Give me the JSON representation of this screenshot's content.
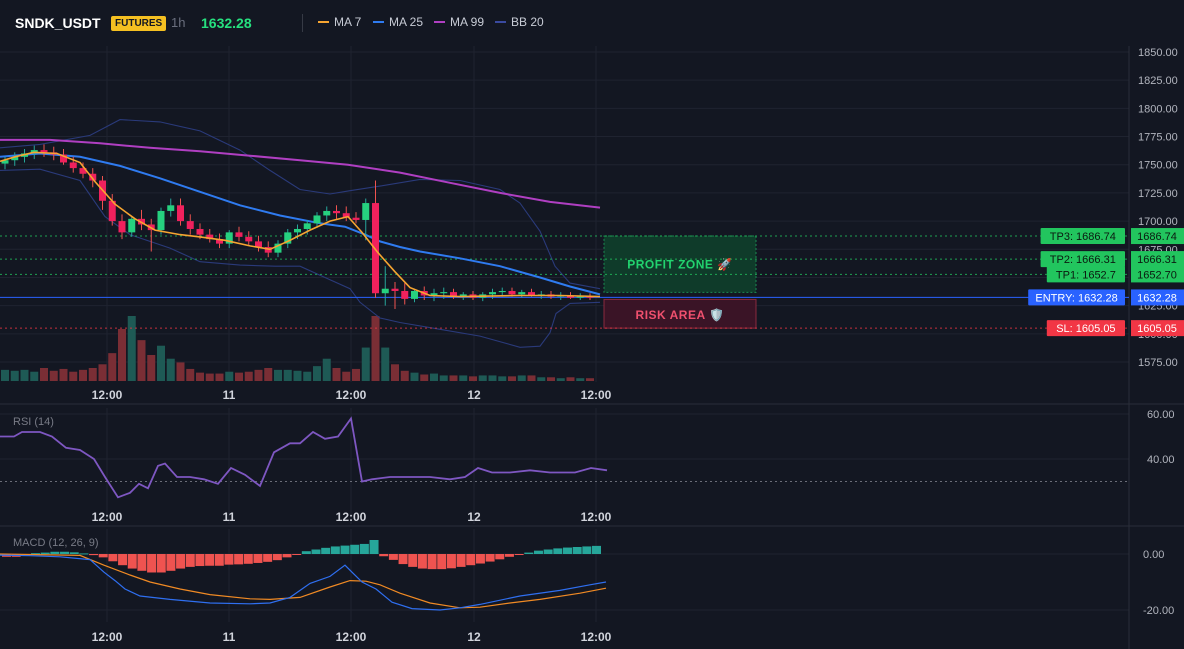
{
  "header": {
    "symbol": "SNDK_USDT",
    "badge": "FUTURES",
    "interval": "1h",
    "last_price": "1632.28"
  },
  "legend": [
    {
      "name": "MA 7",
      "color": "#f7a531"
    },
    {
      "name": "MA 25",
      "color": "#2f7bf0"
    },
    {
      "name": "MA 99",
      "color": "#b03fc2"
    },
    {
      "name": "BB 20",
      "color": "#2a3a7a"
    }
  ],
  "zones": {
    "profit_label": "PROFIT ZONE 🚀",
    "risk_label": "RISK AREA 🛡️"
  },
  "price_levels": [
    {
      "label": "TP3: 1686.74",
      "value": 1686.74,
      "axis_label": "1686.74",
      "color": "#22c55e",
      "kind": "tp"
    },
    {
      "label": "TP2: 1666.31",
      "value": 1666.31,
      "axis_label": "1666.31",
      "color": "#22c55e",
      "kind": "tp"
    },
    {
      "label": "TP1: 1652.7",
      "value": 1652.7,
      "axis_label": "1652.70",
      "color": "#22c55e",
      "kind": "tp"
    },
    {
      "label": "ENTRY: 1632.28",
      "value": 1632.28,
      "axis_label": "1632.28",
      "color": "#2962ff",
      "kind": "entry"
    },
    {
      "label": "SL: 1605.05",
      "value": 1605.05,
      "axis_label": "1605.05",
      "color": "#f23645",
      "kind": "sl"
    }
  ],
  "chart_data": [
    {
      "type": "candlestick",
      "title": "",
      "y_ticks": [
        "1850.00",
        "1825.00",
        "1800.00",
        "1775.00",
        "1750.00",
        "1725.00",
        "1700.00",
        "1675.00",
        "1650.00",
        "1625.00",
        "1600.00",
        "1575.00"
      ],
      "x_ticks": [
        "12:00",
        "11",
        "12:00",
        "12",
        "12:00"
      ],
      "ylim": [
        1565,
        1853
      ],
      "ohlc": [
        [
          1751,
          1757,
          1746,
          1754
        ],
        [
          1754,
          1761,
          1749,
          1757
        ],
        [
          1757,
          1764,
          1752,
          1760
        ],
        [
          1760,
          1767,
          1755,
          1763
        ],
        [
          1763,
          1768,
          1757,
          1761
        ],
        [
          1761,
          1766,
          1754,
          1759
        ],
        [
          1759,
          1764,
          1750,
          1752
        ],
        [
          1752,
          1757,
          1743,
          1747
        ],
        [
          1747,
          1752,
          1738,
          1742
        ],
        [
          1742,
          1747,
          1730,
          1736
        ],
        [
          1736,
          1740,
          1710,
          1718
        ],
        [
          1718,
          1724,
          1696,
          1700
        ],
        [
          1700,
          1706,
          1684,
          1690
        ],
        [
          1690,
          1704,
          1686,
          1702
        ],
        [
          1702,
          1710,
          1692,
          1697
        ],
        [
          1697,
          1702,
          1673,
          1692
        ],
        [
          1692,
          1712,
          1688,
          1709
        ],
        [
          1709,
          1720,
          1704,
          1714
        ],
        [
          1714,
          1720,
          1696,
          1700
        ],
        [
          1700,
          1706,
          1688,
          1693
        ],
        [
          1693,
          1698,
          1684,
          1688
        ],
        [
          1688,
          1693,
          1681,
          1684
        ],
        [
          1684,
          1689,
          1676,
          1680
        ],
        [
          1680,
          1692,
          1676,
          1690
        ],
        [
          1690,
          1695,
          1682,
          1686
        ],
        [
          1686,
          1691,
          1679,
          1682
        ],
        [
          1682,
          1687,
          1673,
          1677
        ],
        [
          1677,
          1682,
          1668,
          1672
        ],
        [
          1672,
          1683,
          1668,
          1680
        ],
        [
          1680,
          1693,
          1676,
          1690
        ],
        [
          1690,
          1697,
          1684,
          1693
        ],
        [
          1693,
          1701,
          1688,
          1698
        ],
        [
          1698,
          1708,
          1694,
          1705
        ],
        [
          1705,
          1713,
          1700,
          1709
        ],
        [
          1709,
          1714,
          1702,
          1707
        ],
        [
          1707,
          1713,
          1700,
          1703
        ],
        [
          1703,
          1708,
          1698,
          1701
        ],
        [
          1701,
          1720,
          1683,
          1716
        ],
        [
          1716,
          1736,
          1632,
          1636
        ],
        [
          1636,
          1660,
          1625,
          1640
        ],
        [
          1640,
          1646,
          1622,
          1638
        ],
        [
          1638,
          1645,
          1626,
          1631
        ],
        [
          1631,
          1640,
          1628,
          1638
        ],
        [
          1638,
          1642,
          1630,
          1634
        ],
        [
          1634,
          1640,
          1629,
          1636
        ],
        [
          1636,
          1641,
          1631,
          1637
        ],
        [
          1637,
          1640,
          1631,
          1633
        ],
        [
          1633,
          1637,
          1630,
          1635
        ],
        [
          1635,
          1638,
          1630,
          1632
        ],
        [
          1632,
          1637,
          1629,
          1635
        ],
        [
          1635,
          1640,
          1631,
          1637
        ],
        [
          1637,
          1641,
          1633,
          1638
        ],
        [
          1638,
          1641,
          1633,
          1635
        ],
        [
          1635,
          1639,
          1632,
          1637
        ],
        [
          1637,
          1640,
          1633,
          1634
        ],
        [
          1634,
          1638,
          1631,
          1635
        ],
        [
          1635,
          1638,
          1631,
          1633
        ],
        [
          1633,
          1637,
          1630,
          1634
        ],
        [
          1634,
          1637,
          1631,
          1632
        ],
        [
          1632,
          1636,
          1630,
          1633
        ],
        [
          1633,
          1636,
          1630,
          1632
        ]
      ],
      "volume": [
        12,
        11,
        12,
        10,
        14,
        11,
        13,
        10,
        12,
        14,
        18,
        30,
        56,
        70,
        44,
        28,
        38,
        24,
        20,
        13,
        9,
        8,
        8,
        10,
        9,
        10,
        12,
        14,
        12,
        12,
        11,
        10,
        16,
        24,
        14,
        10,
        13,
        36,
        70,
        36,
        18,
        11,
        9,
        7,
        8,
        6,
        6,
        6,
        5,
        6,
        6,
        5,
        5,
        6,
        6,
        4,
        4,
        3,
        4,
        3,
        3
      ],
      "ma7": [
        [
          0,
          1753
        ],
        [
          15,
          1757
        ],
        [
          34,
          1761
        ],
        [
          57,
          1760
        ],
        [
          80,
          1752
        ],
        [
          95,
          1735
        ],
        [
          115,
          1715
        ],
        [
          135,
          1702
        ],
        [
          155,
          1692
        ],
        [
          180,
          1688
        ],
        [
          200,
          1686
        ],
        [
          225,
          1683
        ],
        [
          250,
          1678
        ],
        [
          270,
          1675
        ],
        [
          290,
          1683
        ],
        [
          310,
          1692
        ],
        [
          330,
          1700
        ],
        [
          348,
          1704
        ],
        [
          362,
          1690
        ],
        [
          378,
          1672
        ],
        [
          395,
          1655
        ],
        [
          410,
          1641
        ],
        [
          430,
          1634
        ],
        [
          460,
          1633
        ],
        [
          520,
          1634
        ],
        [
          560,
          1634
        ],
        [
          600,
          1633
        ]
      ],
      "ma25": [
        [
          0,
          1757
        ],
        [
          40,
          1760
        ],
        [
          80,
          1757
        ],
        [
          120,
          1749
        ],
        [
          160,
          1738
        ],
        [
          200,
          1726
        ],
        [
          240,
          1714
        ],
        [
          280,
          1705
        ],
        [
          320,
          1698
        ],
        [
          345,
          1695
        ],
        [
          365,
          1688
        ],
        [
          380,
          1682
        ],
        [
          400,
          1677
        ],
        [
          420,
          1673
        ],
        [
          460,
          1667
        ],
        [
          500,
          1660
        ],
        [
          540,
          1650
        ],
        [
          570,
          1642
        ],
        [
          600,
          1635
        ]
      ],
      "ma99": [
        [
          0,
          1772
        ],
        [
          50,
          1772
        ],
        [
          100,
          1769
        ],
        [
          150,
          1765
        ],
        [
          200,
          1762
        ],
        [
          250,
          1758
        ],
        [
          300,
          1754
        ],
        [
          348,
          1750
        ],
        [
          400,
          1743
        ],
        [
          450,
          1734
        ],
        [
          500,
          1725
        ],
        [
          550,
          1717
        ],
        [
          600,
          1712
        ]
      ],
      "bb_upper": [
        [
          0,
          1765
        ],
        [
          40,
          1768
        ],
        [
          90,
          1776
        ],
        [
          120,
          1790
        ],
        [
          160,
          1788
        ],
        [
          200,
          1780
        ],
        [
          240,
          1763
        ],
        [
          270,
          1745
        ],
        [
          300,
          1728
        ],
        [
          330,
          1724
        ],
        [
          350,
          1727
        ],
        [
          380,
          1731
        ],
        [
          420,
          1737
        ],
        [
          460,
          1736
        ],
        [
          500,
          1728
        ],
        [
          520,
          1716
        ],
        [
          540,
          1691
        ],
        [
          555,
          1660
        ],
        [
          570,
          1645
        ],
        [
          600,
          1640
        ]
      ],
      "bb_lower": [
        [
          0,
          1745
        ],
        [
          40,
          1746
        ],
        [
          80,
          1736
        ],
        [
          105,
          1704
        ],
        [
          130,
          1688
        ],
        [
          170,
          1676
        ],
        [
          200,
          1664
        ],
        [
          240,
          1661
        ],
        [
          275,
          1660
        ],
        [
          300,
          1660
        ],
        [
          330,
          1648
        ],
        [
          350,
          1640
        ],
        [
          360,
          1628
        ],
        [
          380,
          1614
        ],
        [
          400,
          1610
        ],
        [
          440,
          1604
        ],
        [
          480,
          1598
        ],
        [
          520,
          1588
        ],
        [
          540,
          1589
        ],
        [
          550,
          1601
        ],
        [
          556,
          1618
        ],
        [
          570,
          1627
        ],
        [
          600,
          1628
        ]
      ]
    },
    {
      "type": "line",
      "title": "RSI (14)",
      "y_ticks": [
        "60.00",
        "40.00"
      ],
      "x_ticks": [
        "12:00",
        "11",
        "12:00",
        "12",
        "12:00"
      ],
      "ylim": [
        24,
        66
      ],
      "reference_line": 30,
      "series": [
        {
          "color": "#7e57c2",
          "values": [
            [
              0,
              50
            ],
            [
              14,
              50
            ],
            [
              22,
              52
            ],
            [
              40,
              52
            ],
            [
              52,
              50
            ],
            [
              66,
              45
            ],
            [
              80,
              44
            ],
            [
              94,
              40
            ],
            [
              105,
              32
            ],
            [
              118,
              23
            ],
            [
              130,
              25
            ],
            [
              139,
              29
            ],
            [
              148,
              27
            ],
            [
              158,
              37
            ],
            [
              165,
              38
            ],
            [
              177,
              32
            ],
            [
              190,
              32
            ],
            [
              204,
              31
            ],
            [
              218,
              29
            ],
            [
              231,
              36
            ],
            [
              245,
              33
            ],
            [
              260,
              28
            ],
            [
              274,
              43
            ],
            [
              290,
              47
            ],
            [
              300,
              47
            ],
            [
              313,
              52
            ],
            [
              325,
              49
            ],
            [
              338,
              50
            ],
            [
              351,
              58
            ],
            [
              362,
              30
            ],
            [
              372,
              31
            ],
            [
              390,
              32
            ],
            [
              410,
              32
            ],
            [
              430,
              32
            ],
            [
              450,
              31
            ],
            [
              465,
              32
            ],
            [
              478,
              36
            ],
            [
              492,
              34
            ],
            [
              510,
              34
            ],
            [
              530,
              35
            ],
            [
              550,
              34
            ],
            [
              575,
              34
            ],
            [
              591,
              36
            ],
            [
              607,
              35
            ]
          ]
        }
      ]
    },
    {
      "type": "bar+line",
      "title": "MACD (12, 26, 9)",
      "y_ticks": [
        "0.00",
        "-20.00"
      ],
      "x_ticks": [
        "12:00",
        "11",
        "12:00",
        "12",
        "12:00"
      ],
      "ylim": [
        -25,
        8
      ],
      "histogram": [
        -1,
        -1,
        -0.5,
        0.3,
        0.5,
        0.8,
        0.8,
        0.6,
        0.2,
        -0.4,
        -1.2,
        -2.6,
        -4.0,
        -5.2,
        -6.0,
        -6.6,
        -6.6,
        -6.0,
        -5.2,
        -4.6,
        -4.3,
        -4.2,
        -4.2,
        -3.8,
        -3.7,
        -3.5,
        -3.2,
        -2.8,
        -2.2,
        -1.2,
        -0.3,
        1.0,
        1.6,
        2.2,
        2.7,
        3.0,
        3.3,
        3.6,
        5.0,
        -0.8,
        -2.1,
        -3.6,
        -4.6,
        -5.2,
        -5.4,
        -5.4,
        -5.1,
        -4.6,
        -4.0,
        -3.4,
        -2.7,
        -1.9,
        -1.0,
        -0.2,
        0.5,
        1.2,
        1.6,
        2.0,
        2.3,
        2.5,
        2.7,
        2.9
      ],
      "macd": [
        [
          0,
          -0.4
        ],
        [
          30,
          -0.6
        ],
        [
          60,
          -1
        ],
        [
          90,
          -2
        ],
        [
          104,
          -6.5
        ],
        [
          115,
          -9.5
        ],
        [
          125,
          -12.5
        ],
        [
          140,
          -15
        ],
        [
          170,
          -16.2
        ],
        [
          210,
          -17.5
        ],
        [
          250,
          -17.8
        ],
        [
          270,
          -17.5
        ],
        [
          290,
          -15.5
        ],
        [
          310,
          -10.5
        ],
        [
          330,
          -8
        ],
        [
          345,
          -4
        ],
        [
          352,
          -6.5
        ],
        [
          362,
          -10
        ],
        [
          376,
          -12.5
        ],
        [
          392,
          -17.2
        ],
        [
          412,
          -19.5
        ],
        [
          440,
          -20
        ],
        [
          460,
          -19.2
        ],
        [
          480,
          -18
        ],
        [
          520,
          -15
        ],
        [
          560,
          -13
        ],
        [
          590,
          -11
        ],
        [
          606,
          -10
        ]
      ],
      "signal": [
        [
          0,
          0
        ],
        [
          80,
          -0.5
        ],
        [
          104,
          -4
        ],
        [
          130,
          -7.5
        ],
        [
          150,
          -10
        ],
        [
          180,
          -12.5
        ],
        [
          210,
          -14.5
        ],
        [
          250,
          -16
        ],
        [
          270,
          -16.2
        ],
        [
          300,
          -15.5
        ],
        [
          330,
          -11.8
        ],
        [
          350,
          -9.5
        ],
        [
          366,
          -9.7
        ],
        [
          380,
          -11
        ],
        [
          400,
          -14
        ],
        [
          430,
          -17.5
        ],
        [
          460,
          -19.2
        ],
        [
          480,
          -19
        ],
        [
          510,
          -17.5
        ],
        [
          540,
          -16.2
        ],
        [
          580,
          -14
        ],
        [
          606,
          -12.2
        ]
      ]
    }
  ]
}
